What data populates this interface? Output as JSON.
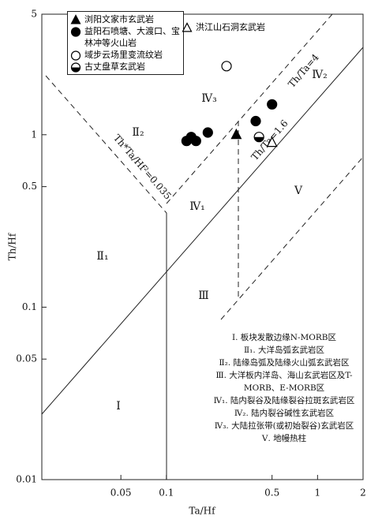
{
  "chart_data": {
    "type": "scatter",
    "x_label": "Ta/Hf",
    "y_label": "Th/Hf",
    "xscale": "log",
    "yscale": "log",
    "xlim": [
      0.015,
      2
    ],
    "ylim": [
      0.01,
      5
    ],
    "xticks": [
      0.05,
      0.1,
      0.5,
      1,
      2
    ],
    "yticks": [
      0.01,
      0.05,
      0.1,
      0.5,
      1,
      5
    ],
    "series": [
      {
        "name": "浏阳文家市玄武岩",
        "color": "#000000",
        "marker": "triangle",
        "x": [
          0.29
        ],
        "values": [
          1.0
        ]
      },
      {
        "name": "益阳石喷塘、大渡口、宝林冲等火山岩",
        "color": "#000000",
        "marker": "circle",
        "x": [
          0.136,
          0.146,
          0.157,
          0.188,
          0.39,
          0.5
        ],
        "values": [
          0.92,
          0.97,
          0.92,
          1.03,
          1.2,
          1.5
        ]
      },
      {
        "name": "域步云场里变流纹岩",
        "color": "#000000",
        "marker": "circle-open",
        "x": [
          0.25
        ],
        "values": [
          2.5
        ]
      },
      {
        "name": "古丈盘草玄武岩",
        "color": "#000000",
        "marker": "half-circle",
        "x": [
          0.41
        ],
        "values": [
          0.97
        ]
      },
      {
        "name": "洪江山石洞玄武岩",
        "color": "#000000",
        "marker": "triangle-open",
        "x": [
          0.5
        ],
        "values": [
          0.9
        ]
      }
    ],
    "region_labels": [
      "Ⅱ₂",
      "Ⅱ₁",
      "Ⅳ₃",
      "Ⅳ₂",
      "Ⅳ₁",
      "Ⅲ",
      "Ⅰ",
      "Ⅴ"
    ],
    "line_labels": [
      "Th/Ta=4",
      "Th/Ta=1.6",
      "Th*Ta/Hf²=0.035"
    ],
    "notes": [
      "Ⅰ. 板块发散边缘N-MORB区",
      "Ⅱ₁. 大洋岛弧玄武岩区",
      "Ⅱ₂. 陆缘岛弧及陆缘火山弧玄武岩区",
      "Ⅲ. 大洋板内洋岛、海山玄武岩区及T-MORB、E-MORB区",
      "Ⅳ₁. 陆内裂谷及陆缘裂谷拉斑玄武岩区",
      "Ⅳ₂. 陆内裂谷碱性玄武岩区",
      "Ⅳ₃. 大陆拉张带(或初始裂谷)玄武岩区",
      "Ⅴ. 地幔热柱"
    ]
  }
}
